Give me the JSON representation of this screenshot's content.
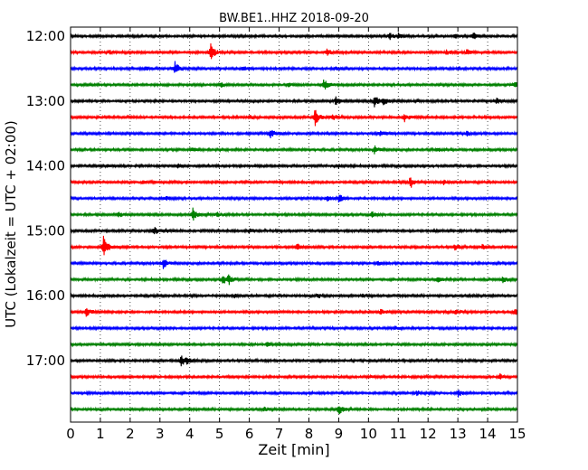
{
  "chart_data": {
    "type": "line",
    "title": "BW.BE1..HHZ 2018-09-20",
    "xlabel": "Zeit  [min]",
    "ylabel": "UTC (Lokalzeit = UTC + 02:00)",
    "xlim": [
      0,
      15
    ],
    "x_ticks": [
      "0",
      "1",
      "2",
      "3",
      "4",
      "5",
      "6",
      "7",
      "8",
      "9",
      "10",
      "11",
      "12",
      "13",
      "14",
      "15"
    ],
    "y_tick_labels": [
      "12:00",
      "13:00",
      "14:00",
      "15:00",
      "16:00",
      "17:00"
    ],
    "grid": "vertical dotted",
    "colors": [
      "#000000",
      "#ff0000",
      "#0000ff",
      "#008000"
    ],
    "series": [
      {
        "start": "12:00",
        "color": "#000000",
        "events": [
          {
            "t": 10.7,
            "amp": 4
          },
          {
            "t": 11.0,
            "amp": 3
          },
          {
            "t": 13.5,
            "amp": 4
          },
          {
            "t": 12.9,
            "amp": 2
          }
        ]
      },
      {
        "start": "12:15",
        "color": "#ff0000",
        "events": [
          {
            "t": 4.7,
            "amp": 9
          },
          {
            "t": 1.3,
            "amp": 2
          },
          {
            "t": 8.6,
            "amp": 4
          },
          {
            "t": 12.6,
            "amp": 3
          },
          {
            "t": 13.3,
            "amp": 3
          }
        ]
      },
      {
        "start": "12:30",
        "color": "#0000ff",
        "events": [
          {
            "t": 3.5,
            "amp": 8
          },
          {
            "t": 2.5,
            "amp": 2
          },
          {
            "t": 5.8,
            "amp": 3
          },
          {
            "t": 8.9,
            "amp": 2
          },
          {
            "t": 13.0,
            "amp": 2
          }
        ]
      },
      {
        "start": "12:45",
        "color": "#008000",
        "events": [
          {
            "t": 5.0,
            "amp": 3
          },
          {
            "t": 7.3,
            "amp": 2
          },
          {
            "t": 8.5,
            "amp": 6
          },
          {
            "t": 14.9,
            "amp": 3
          }
        ]
      },
      {
        "start": "13:00",
        "color": "#000000",
        "events": [
          {
            "t": 8.9,
            "amp": 5
          },
          {
            "t": 10.2,
            "amp": 7
          },
          {
            "t": 10.5,
            "amp": 4
          },
          {
            "t": 14.3,
            "amp": 3
          }
        ]
      },
      {
        "start": "13:15",
        "color": "#ff0000",
        "events": [
          {
            "t": 8.2,
            "amp": 10
          },
          {
            "t": 8.8,
            "amp": 3
          },
          {
            "t": 11.2,
            "amp": 5
          },
          {
            "t": 6.0,
            "amp": 2
          }
        ]
      },
      {
        "start": "13:30",
        "color": "#0000ff",
        "events": [
          {
            "t": 6.7,
            "amp": 5
          },
          {
            "t": 10.4,
            "amp": 3
          },
          {
            "t": 13.3,
            "amp": 3
          }
        ]
      },
      {
        "start": "13:45",
        "color": "#008000",
        "events": [
          {
            "t": 4.1,
            "amp": 3
          },
          {
            "t": 10.2,
            "amp": 4
          },
          {
            "t": 12.3,
            "amp": 2
          }
        ]
      },
      {
        "start": "14:00",
        "color": "#000000",
        "events": [
          {
            "t": 1.2,
            "amp": 2
          },
          {
            "t": 3.6,
            "amp": 2
          },
          {
            "t": 9.0,
            "amp": 2
          }
        ]
      },
      {
        "start": "14:15",
        "color": "#ff0000",
        "events": [
          {
            "t": 11.4,
            "amp": 7
          },
          {
            "t": 12.5,
            "amp": 3
          },
          {
            "t": 2.4,
            "amp": 2
          }
        ]
      },
      {
        "start": "14:30",
        "color": "#0000ff",
        "events": [
          {
            "t": 9.0,
            "amp": 5
          },
          {
            "t": 8.6,
            "amp": 3
          },
          {
            "t": 3.2,
            "amp": 2
          }
        ]
      },
      {
        "start": "14:45",
        "color": "#008000",
        "events": [
          {
            "t": 4.1,
            "amp": 7
          },
          {
            "t": 1.6,
            "amp": 3
          },
          {
            "t": 4.9,
            "amp": 3
          },
          {
            "t": 10.1,
            "amp": 3
          }
        ]
      },
      {
        "start": "15:00",
        "color": "#000000",
        "events": [
          {
            "t": 2.8,
            "amp": 5
          },
          {
            "t": 3.2,
            "amp": 2
          },
          {
            "t": 6.0,
            "amp": 2
          },
          {
            "t": 12.2,
            "amp": 2
          }
        ]
      },
      {
        "start": "15:15",
        "color": "#ff0000",
        "events": [
          {
            "t": 1.1,
            "amp": 12
          },
          {
            "t": 7.6,
            "amp": 4
          },
          {
            "t": 12.9,
            "amp": 3
          },
          {
            "t": 13.8,
            "amp": 3
          }
        ]
      },
      {
        "start": "15:30",
        "color": "#0000ff",
        "events": [
          {
            "t": 3.1,
            "amp": 6
          },
          {
            "t": 10.3,
            "amp": 2
          }
        ]
      },
      {
        "start": "15:45",
        "color": "#008000",
        "events": [
          {
            "t": 5.1,
            "amp": 6
          },
          {
            "t": 5.3,
            "amp": 5
          },
          {
            "t": 12.3,
            "amp": 4
          },
          {
            "t": 14.5,
            "amp": 5
          }
        ]
      },
      {
        "start": "16:00",
        "color": "#000000",
        "events": [
          {
            "t": 5.5,
            "amp": 2
          },
          {
            "t": 8.3,
            "amp": 3
          },
          {
            "t": 9.8,
            "amp": 2
          }
        ]
      },
      {
        "start": "16:15",
        "color": "#ff0000",
        "events": [
          {
            "t": 0.5,
            "amp": 6
          },
          {
            "t": 10.4,
            "amp": 3
          },
          {
            "t": 12.9,
            "amp": 3
          },
          {
            "t": 14.9,
            "amp": 3
          }
        ]
      },
      {
        "start": "16:30",
        "color": "#0000ff",
        "events": [
          {
            "t": 10.9,
            "amp": 2
          }
        ]
      },
      {
        "start": "16:45",
        "color": "#008000",
        "events": [
          {
            "t": 6.6,
            "amp": 2
          }
        ]
      },
      {
        "start": "17:00",
        "color": "#000000",
        "events": [
          {
            "t": 3.7,
            "amp": 7
          },
          {
            "t": 3.9,
            "amp": 3
          }
        ]
      },
      {
        "start": "17:15",
        "color": "#ff0000",
        "events": [
          {
            "t": 10.1,
            "amp": 2
          },
          {
            "t": 14.4,
            "amp": 3
          }
        ]
      },
      {
        "start": "17:30",
        "color": "#0000ff",
        "events": [
          {
            "t": 11.6,
            "amp": 3
          },
          {
            "t": 13.0,
            "amp": 4
          }
        ]
      },
      {
        "start": "17:45",
        "color": "#008000",
        "events": [
          {
            "t": 9.0,
            "amp": 6
          },
          {
            "t": 6.5,
            "amp": 2
          }
        ]
      }
    ]
  }
}
